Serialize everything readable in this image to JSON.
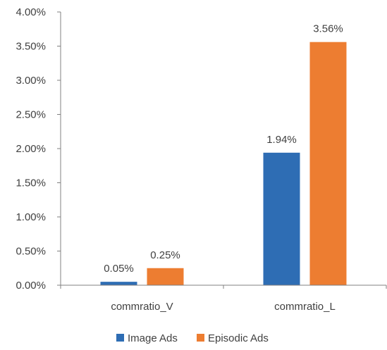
{
  "chart_data": {
    "type": "bar",
    "title": "",
    "xlabel": "",
    "ylabel": "",
    "categories": [
      "commratio_V",
      "commratio_L"
    ],
    "series": [
      {
        "name": "Image Ads",
        "color": "#2E6DB4",
        "values": [
          0.05,
          1.94
        ],
        "labels": [
          "0.05%",
          "1.94%"
        ]
      },
      {
        "name": "Episodic Ads",
        "color": "#ED7D31",
        "values": [
          0.25,
          3.56
        ],
        "labels": [
          "0.25%",
          "3.56%"
        ]
      }
    ],
    "ylim": [
      0,
      4
    ],
    "yticks": [
      0,
      0.5,
      1,
      1.5,
      2,
      2.5,
      3,
      3.5,
      4
    ],
    "ytick_labels": [
      "0.00%",
      "0.50%",
      "1.00%",
      "1.50%",
      "2.00%",
      "2.50%",
      "3.00%",
      "3.50%",
      "4.00%"
    ],
    "grid": false,
    "legend_position": "bottom",
    "axis_color": "#808080"
  }
}
